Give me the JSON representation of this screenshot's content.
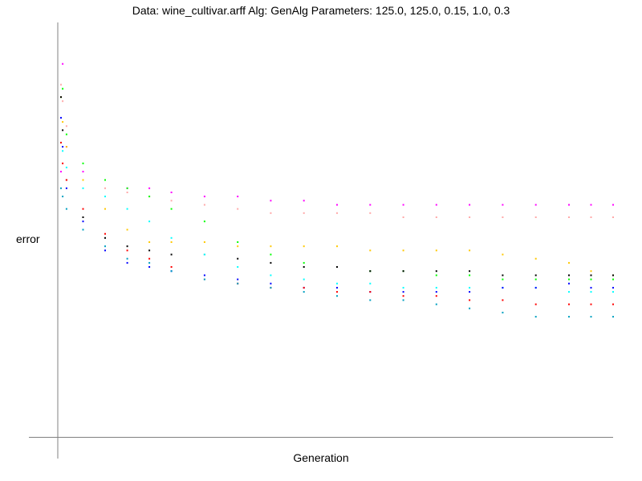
{
  "chart_data": {
    "type": "scatter",
    "title": "Data: wine_cultivar.arff    Alg: GenAlg    Parameters: 125.0, 125.0, 0.15, 1.0, 0.3",
    "xlabel": "Generation",
    "ylabel": "error",
    "xlim": [
      0,
      1
    ],
    "ylim": [
      0,
      1
    ],
    "x_ticks": "none",
    "y_ticks": "none",
    "grid": false,
    "legend": "none",
    "series": [
      {
        "color": "#ff00ff",
        "points": [
          [
            0.0,
            0.64
          ],
          [
            0.003,
            0.9
          ],
          [
            0.01,
            0.7
          ],
          [
            0.04,
            0.64
          ],
          [
            0.08,
            0.62
          ],
          [
            0.12,
            0.6
          ],
          [
            0.16,
            0.6
          ],
          [
            0.2,
            0.59
          ],
          [
            0.26,
            0.58
          ],
          [
            0.32,
            0.58
          ],
          [
            0.38,
            0.57
          ],
          [
            0.44,
            0.57
          ],
          [
            0.5,
            0.56
          ],
          [
            0.56,
            0.56
          ],
          [
            0.62,
            0.56
          ],
          [
            0.68,
            0.56
          ],
          [
            0.74,
            0.56
          ],
          [
            0.8,
            0.56
          ],
          [
            0.86,
            0.56
          ],
          [
            0.92,
            0.56
          ],
          [
            0.96,
            0.56
          ],
          [
            1.0,
            0.56
          ]
        ]
      },
      {
        "color": "#ffa8a8",
        "points": [
          [
            0.0,
            0.85
          ],
          [
            0.003,
            0.81
          ],
          [
            0.01,
            0.75
          ],
          [
            0.04,
            0.62
          ],
          [
            0.08,
            0.6
          ],
          [
            0.12,
            0.59
          ],
          [
            0.16,
            0.58
          ],
          [
            0.2,
            0.57
          ],
          [
            0.26,
            0.56
          ],
          [
            0.32,
            0.55
          ],
          [
            0.38,
            0.54
          ],
          [
            0.44,
            0.54
          ],
          [
            0.5,
            0.54
          ],
          [
            0.56,
            0.54
          ],
          [
            0.62,
            0.53
          ],
          [
            0.68,
            0.53
          ],
          [
            0.74,
            0.53
          ],
          [
            0.8,
            0.53
          ],
          [
            0.86,
            0.53
          ],
          [
            0.92,
            0.53
          ],
          [
            0.96,
            0.53
          ],
          [
            1.0,
            0.53
          ]
        ]
      },
      {
        "color": "#00ff00",
        "points": [
          [
            0.0,
            0.82
          ],
          [
            0.003,
            0.84
          ],
          [
            0.01,
            0.73
          ],
          [
            0.04,
            0.66
          ],
          [
            0.08,
            0.62
          ],
          [
            0.12,
            0.6
          ],
          [
            0.16,
            0.58
          ],
          [
            0.2,
            0.55
          ],
          [
            0.26,
            0.52
          ],
          [
            0.32,
            0.47
          ],
          [
            0.38,
            0.44
          ],
          [
            0.44,
            0.42
          ],
          [
            0.5,
            0.41
          ],
          [
            0.56,
            0.4
          ],
          [
            0.62,
            0.4
          ],
          [
            0.68,
            0.39
          ],
          [
            0.74,
            0.39
          ],
          [
            0.8,
            0.38
          ],
          [
            0.86,
            0.38
          ],
          [
            0.92,
            0.38
          ],
          [
            0.96,
            0.38
          ],
          [
            1.0,
            0.38
          ]
        ]
      },
      {
        "color": "#ffc800",
        "points": [
          [
            0.0,
            0.82
          ],
          [
            0.003,
            0.76
          ],
          [
            0.01,
            0.7
          ],
          [
            0.04,
            0.62
          ],
          [
            0.08,
            0.55
          ],
          [
            0.12,
            0.5
          ],
          [
            0.16,
            0.47
          ],
          [
            0.2,
            0.47
          ],
          [
            0.26,
            0.47
          ],
          [
            0.32,
            0.46
          ],
          [
            0.38,
            0.46
          ],
          [
            0.44,
            0.46
          ],
          [
            0.5,
            0.46
          ],
          [
            0.56,
            0.45
          ],
          [
            0.62,
            0.45
          ],
          [
            0.68,
            0.45
          ],
          [
            0.74,
            0.45
          ],
          [
            0.8,
            0.44
          ],
          [
            0.86,
            0.43
          ],
          [
            0.92,
            0.42
          ],
          [
            0.96,
            0.4
          ],
          [
            1.0,
            0.39
          ]
        ]
      },
      {
        "color": "#000000",
        "points": [
          [
            0.0,
            0.82
          ],
          [
            0.003,
            0.74
          ],
          [
            0.01,
            0.62
          ],
          [
            0.04,
            0.53
          ],
          [
            0.08,
            0.48
          ],
          [
            0.12,
            0.46
          ],
          [
            0.16,
            0.45
          ],
          [
            0.2,
            0.44
          ],
          [
            0.26,
            0.44
          ],
          [
            0.32,
            0.43
          ],
          [
            0.38,
            0.42
          ],
          [
            0.44,
            0.41
          ],
          [
            0.5,
            0.41
          ],
          [
            0.56,
            0.4
          ],
          [
            0.62,
            0.4
          ],
          [
            0.68,
            0.4
          ],
          [
            0.74,
            0.4
          ],
          [
            0.8,
            0.39
          ],
          [
            0.86,
            0.39
          ],
          [
            0.92,
            0.39
          ],
          [
            0.96,
            0.39
          ],
          [
            1.0,
            0.39
          ]
        ]
      },
      {
        "color": "#00ffff",
        "points": [
          [
            0.0,
            0.71
          ],
          [
            0.003,
            0.69
          ],
          [
            0.01,
            0.65
          ],
          [
            0.04,
            0.6
          ],
          [
            0.08,
            0.58
          ],
          [
            0.12,
            0.55
          ],
          [
            0.16,
            0.52
          ],
          [
            0.2,
            0.48
          ],
          [
            0.26,
            0.44
          ],
          [
            0.32,
            0.41
          ],
          [
            0.38,
            0.39
          ],
          [
            0.44,
            0.38
          ],
          [
            0.5,
            0.37
          ],
          [
            0.56,
            0.37
          ],
          [
            0.62,
            0.36
          ],
          [
            0.68,
            0.36
          ],
          [
            0.74,
            0.36
          ],
          [
            0.8,
            0.36
          ],
          [
            0.86,
            0.36
          ],
          [
            0.92,
            0.35
          ],
          [
            0.96,
            0.35
          ],
          [
            1.0,
            0.35
          ]
        ]
      },
      {
        "color": "#0000ff",
        "points": [
          [
            0.0,
            0.77
          ],
          [
            0.003,
            0.7
          ],
          [
            0.01,
            0.6
          ],
          [
            0.04,
            0.52
          ],
          [
            0.08,
            0.45
          ],
          [
            0.12,
            0.42
          ],
          [
            0.16,
            0.41
          ],
          [
            0.2,
            0.4
          ],
          [
            0.26,
            0.39
          ],
          [
            0.32,
            0.38
          ],
          [
            0.38,
            0.37
          ],
          [
            0.44,
            0.36
          ],
          [
            0.5,
            0.36
          ],
          [
            0.56,
            0.35
          ],
          [
            0.62,
            0.35
          ],
          [
            0.68,
            0.35
          ],
          [
            0.74,
            0.35
          ],
          [
            0.8,
            0.36
          ],
          [
            0.86,
            0.36
          ],
          [
            0.92,
            0.37
          ],
          [
            0.96,
            0.36
          ],
          [
            1.0,
            0.36
          ]
        ]
      },
      {
        "color": "#ff0000",
        "points": [
          [
            0.0,
            0.71
          ],
          [
            0.003,
            0.66
          ],
          [
            0.01,
            0.62
          ],
          [
            0.04,
            0.55
          ],
          [
            0.08,
            0.49
          ],
          [
            0.12,
            0.45
          ],
          [
            0.16,
            0.43
          ],
          [
            0.2,
            0.41
          ],
          [
            0.26,
            0.38
          ],
          [
            0.32,
            0.37
          ],
          [
            0.38,
            0.36
          ],
          [
            0.44,
            0.36
          ],
          [
            0.5,
            0.35
          ],
          [
            0.56,
            0.35
          ],
          [
            0.62,
            0.34
          ],
          [
            0.68,
            0.34
          ],
          [
            0.74,
            0.33
          ],
          [
            0.8,
            0.33
          ],
          [
            0.86,
            0.32
          ],
          [
            0.92,
            0.32
          ],
          [
            0.96,
            0.32
          ],
          [
            1.0,
            0.32
          ]
        ]
      },
      {
        "color": "#00a0c0",
        "points": [
          [
            0.0,
            0.6
          ],
          [
            0.003,
            0.58
          ],
          [
            0.01,
            0.55
          ],
          [
            0.04,
            0.5
          ],
          [
            0.08,
            0.46
          ],
          [
            0.12,
            0.43
          ],
          [
            0.16,
            0.42
          ],
          [
            0.2,
            0.4
          ],
          [
            0.26,
            0.38
          ],
          [
            0.32,
            0.37
          ],
          [
            0.38,
            0.36
          ],
          [
            0.44,
            0.35
          ],
          [
            0.5,
            0.34
          ],
          [
            0.56,
            0.33
          ],
          [
            0.62,
            0.33
          ],
          [
            0.68,
            0.32
          ],
          [
            0.74,
            0.31
          ],
          [
            0.8,
            0.3
          ],
          [
            0.86,
            0.29
          ],
          [
            0.92,
            0.29
          ],
          [
            0.96,
            0.29
          ],
          [
            1.0,
            0.29
          ]
        ]
      }
    ]
  }
}
